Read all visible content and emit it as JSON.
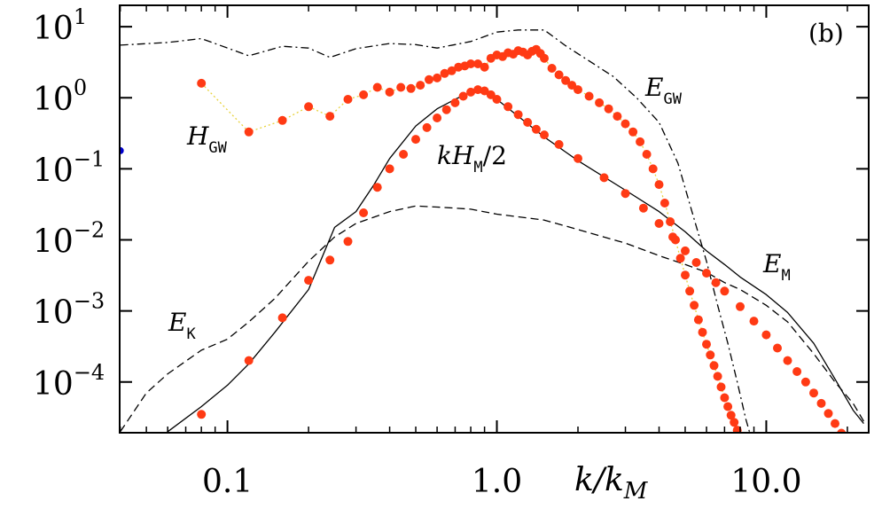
{
  "chart_data": {
    "type": "line",
    "panel_label": "(b)",
    "xlabel": "k/k",
    "xlabel_sub": "M",
    "ylabel": "",
    "xscale": "log",
    "yscale": "log",
    "xlim": [
      0.0398,
      24
    ],
    "ylim": [
      1.93e-05,
      20
    ],
    "x_ticks": [
      {
        "value": 0.1,
        "label": "0.1"
      },
      {
        "value": 1.0,
        "label": "1.0"
      },
      {
        "value": 10.0,
        "label": "10.0"
      }
    ],
    "y_ticks": [
      {
        "value": 10,
        "base": "10",
        "exp": "1"
      },
      {
        "value": 1,
        "base": "10",
        "exp": "0"
      },
      {
        "value": 0.1,
        "base": "10",
        "exp": "−1"
      },
      {
        "value": 0.01,
        "base": "10",
        "exp": "−2"
      },
      {
        "value": 0.001,
        "base": "10",
        "exp": "−3"
      },
      {
        "value": 0.0001,
        "base": "10",
        "exp": "−4"
      }
    ],
    "annotations": [
      {
        "id": "h_gw",
        "main": "H",
        "sub": "GW",
        "extra": ""
      },
      {
        "id": "khm",
        "main": "kH",
        "sub": "M",
        "extra": "/2"
      },
      {
        "id": "e_gw",
        "main": "E",
        "sub": "GW",
        "extra": ""
      },
      {
        "id": "e_m",
        "main": "E",
        "sub": "M",
        "extra": ""
      },
      {
        "id": "e_k",
        "main": "E",
        "sub": "K",
        "extra": ""
      }
    ],
    "colors": {
      "red": "#ff3a14",
      "blue": "#0000cc",
      "dotted": "#e8d23c",
      "black": "#000000"
    },
    "series": [
      {
        "name": "E_GW",
        "style": "dash-dot",
        "color": "#000000",
        "x": [
          0.04,
          0.06,
          0.08,
          0.12,
          0.16,
          0.2,
          0.24,
          0.3,
          0.4,
          0.5,
          0.6,
          0.7,
          0.8,
          1.0,
          1.2,
          1.5,
          1.8,
          2.2,
          2.7,
          3.3,
          4.0,
          4.7,
          5.3,
          6.0,
          6.6,
          7.2,
          7.8,
          8.4,
          8.8
        ],
        "y": [
          5.5,
          6.0,
          6.8,
          3.9,
          5.3,
          5.0,
          3.7,
          4.9,
          5.8,
          5.6,
          5.0,
          5.6,
          6.2,
          8.4,
          9.0,
          9.0,
          5.4,
          3.3,
          2.0,
          1.0,
          0.45,
          0.12,
          0.025,
          0.005,
          0.0012,
          0.00035,
          0.0001,
          3e-05,
          1.6e-05
        ]
      },
      {
        "name": "E_M",
        "style": "solid",
        "color": "#000000",
        "x": [
          0.045,
          0.06,
          0.08,
          0.1,
          0.12,
          0.15,
          0.2,
          0.25,
          0.3,
          0.35,
          0.4,
          0.5,
          0.6,
          0.7,
          0.8,
          0.85,
          0.9,
          1.0,
          1.2,
          1.5,
          2.0,
          3.0,
          4.0,
          5.0,
          6.0,
          7.0,
          8.0,
          10.0,
          12.0,
          15.0,
          18.0,
          21.0,
          23.0
        ],
        "y": [
          8e-06,
          2e-05,
          4.5e-05,
          9e-05,
          0.00018,
          0.0005,
          0.002,
          0.015,
          0.025,
          0.06,
          0.14,
          0.4,
          0.7,
          0.95,
          1.2,
          1.3,
          1.25,
          0.95,
          0.55,
          0.28,
          0.13,
          0.05,
          0.025,
          0.013,
          0.007,
          0.0045,
          0.003,
          0.0017,
          0.00095,
          0.00035,
          0.00011,
          4e-05,
          2.6e-05
        ]
      },
      {
        "name": "E_K",
        "style": "dashed",
        "color": "#000000",
        "x": [
          0.04,
          0.05,
          0.06,
          0.08,
          0.1,
          0.12,
          0.15,
          0.2,
          0.25,
          0.3,
          0.4,
          0.5,
          0.6,
          0.7,
          0.8,
          1.0,
          1.5,
          2.0,
          3.0,
          4.0,
          5.0,
          6.0,
          7.0,
          8.0,
          10.0,
          12.0,
          15.0,
          18.0,
          21.0,
          23.0
        ],
        "y": [
          2e-05,
          7e-05,
          0.00013,
          0.00028,
          0.0004,
          0.0007,
          0.0015,
          0.005,
          0.011,
          0.017,
          0.025,
          0.03,
          0.029,
          0.028,
          0.027,
          0.023,
          0.019,
          0.014,
          0.009,
          0.006,
          0.0045,
          0.0035,
          0.0025,
          0.002,
          0.0012,
          0.0007,
          0.00025,
          0.0001,
          5e-05,
          2.8e-05
        ]
      },
      {
        "name": "H_GW",
        "style": "dotted-markers",
        "color": "#ff3a14",
        "x": [
          0.08,
          0.12,
          0.16,
          0.2,
          0.24,
          0.28,
          0.32,
          0.36,
          0.4,
          0.44,
          0.48,
          0.52,
          0.56,
          0.6,
          0.64,
          0.68,
          0.72,
          0.76,
          0.8,
          0.85,
          0.9,
          0.95,
          1.0,
          1.05,
          1.1,
          1.15,
          1.2,
          1.25,
          1.3,
          1.35,
          1.4,
          1.45,
          1.5,
          1.6,
          1.7,
          1.8,
          1.9,
          2.0,
          2.2,
          2.4,
          2.6,
          2.8,
          3.0,
          3.2,
          3.4,
          3.6,
          3.8,
          4.0,
          4.2,
          4.4,
          4.6,
          4.8,
          5.0,
          5.2,
          5.4,
          5.6,
          5.8,
          6.0,
          6.2,
          6.4,
          6.6,
          6.8,
          7.0,
          7.2,
          7.4,
          7.6,
          7.8,
          8.0
        ],
        "y": [
          1.6,
          0.33,
          0.48,
          0.75,
          0.55,
          0.95,
          1.1,
          1.4,
          1.2,
          1.4,
          1.35,
          1.5,
          1.8,
          1.9,
          2.2,
          2.4,
          2.7,
          2.8,
          3.0,
          3.0,
          2.7,
          3.6,
          4.0,
          3.8,
          4.3,
          4.1,
          4.6,
          4.4,
          4.0,
          4.5,
          4.8,
          4.2,
          3.6,
          2.6,
          2.1,
          1.75,
          1.5,
          1.3,
          1.05,
          0.85,
          0.7,
          0.55,
          0.43,
          0.33,
          0.24,
          0.16,
          0.1,
          0.06,
          0.033,
          0.018,
          0.01,
          0.0055,
          0.0032,
          0.0019,
          0.0012,
          0.00075,
          0.0005,
          0.00034,
          0.00024,
          0.00017,
          0.00012,
          8.5e-05,
          6e-05,
          4.5e-05,
          3.4e-05,
          2.7e-05,
          2.1e-05,
          1.7e-05
        ]
      },
      {
        "name": "kH_M/2",
        "style": "markers",
        "color": "#ff3a14",
        "x": [
          0.08,
          0.12,
          0.16,
          0.2,
          0.24,
          0.28,
          0.32,
          0.36,
          0.4,
          0.45,
          0.5,
          0.55,
          0.6,
          0.65,
          0.7,
          0.75,
          0.8,
          0.85,
          0.9,
          0.95,
          1.0,
          1.1,
          1.2,
          1.3,
          1.4,
          1.5,
          1.7,
          2.0,
          2.5,
          3.0,
          3.5,
          4.0,
          4.5,
          5.0,
          5.5,
          6.0,
          6.5,
          7.0,
          8.0,
          9.0,
          10.0,
          11.0,
          12.0,
          13.0,
          14.0,
          15.0,
          16.0,
          17.0,
          18.0,
          19.0
        ],
        "y": [
          3.5e-05,
          0.0002,
          0.0008,
          0.0027,
          0.0052,
          0.0095,
          0.024,
          0.055,
          0.1,
          0.16,
          0.26,
          0.38,
          0.52,
          0.68,
          0.85,
          1.05,
          1.2,
          1.3,
          1.25,
          1.1,
          0.95,
          0.75,
          0.58,
          0.45,
          0.36,
          0.3,
          0.22,
          0.14,
          0.075,
          0.045,
          0.028,
          0.017,
          0.011,
          0.007,
          0.0048,
          0.0034,
          0.0025,
          0.0019,
          0.00115,
          0.00072,
          0.00046,
          0.0003,
          0.0002,
          0.00014,
          0.0001,
          7e-05,
          5e-05,
          3.6e-05,
          2.6e-05,
          1.9e-05
        ]
      },
      {
        "name": "",
        "style": "marker",
        "color": "#0000cc",
        "x": [
          0.04
        ],
        "y": [
          0.18
        ]
      }
    ]
  }
}
